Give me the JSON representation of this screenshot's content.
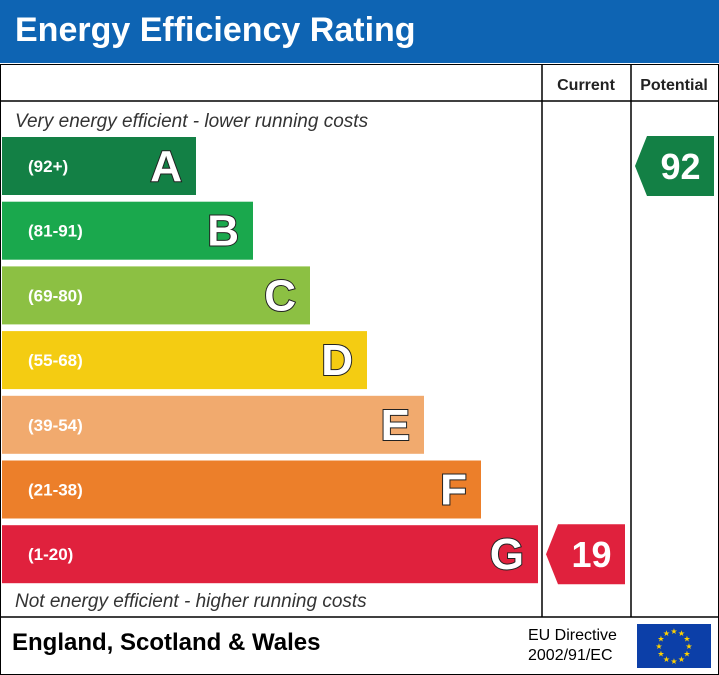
{
  "header": {
    "title": "Energy Efficiency Rating"
  },
  "columns": {
    "current": "Current",
    "potential": "Potential"
  },
  "captions": {
    "top": "Very energy efficient - lower running costs",
    "bottom": "Not energy efficient - higher running costs"
  },
  "footer": {
    "country": "England, Scotland & Wales",
    "directive_line1": "EU Directive",
    "directive_line2": "2002/91/EC"
  },
  "chart_data": {
    "type": "bar",
    "title": "Energy Efficiency Rating",
    "bands": [
      {
        "letter": "A",
        "range": "(92+)",
        "min": 92,
        "max": 100,
        "color": "#138045"
      },
      {
        "letter": "B",
        "range": "(81-91)",
        "min": 81,
        "max": 91,
        "color": "#1aa84d"
      },
      {
        "letter": "C",
        "range": "(69-80)",
        "min": 69,
        "max": 80,
        "color": "#8cc043"
      },
      {
        "letter": "D",
        "range": "(55-68)",
        "min": 55,
        "max": 68,
        "color": "#f4cc12"
      },
      {
        "letter": "E",
        "range": "(39-54)",
        "min": 39,
        "max": 54,
        "color": "#f1aa6e"
      },
      {
        "letter": "F",
        "range": "(21-38)",
        "min": 21,
        "max": 38,
        "color": "#ec7f2a"
      },
      {
        "letter": "G",
        "range": "(1-20)",
        "min": 1,
        "max": 20,
        "color": "#e0213d"
      }
    ],
    "current": {
      "value": 19,
      "band": "G",
      "color": "#e0213d"
    },
    "potential": {
      "value": 92,
      "band": "A",
      "color": "#138045"
    }
  }
}
